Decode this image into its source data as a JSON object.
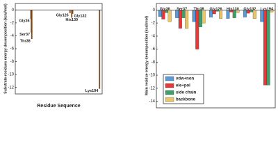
{
  "chart_data": [
    {
      "type": "bar",
      "y_label": "Substrate-residues energy decomposition (kcal/mol)",
      "x_label": "Residue Sequence",
      "categories": [
        "Gly36",
        "Ser37",
        "Thr38",
        "Gly126",
        "His130",
        "Gly132",
        "Lys194"
      ],
      "x": [
        36,
        37,
        38,
        126,
        130,
        132,
        194
      ],
      "values": [
        -1.4,
        -3.5,
        -4.5,
        -0.5,
        -1.2,
        -0.6,
        -12.2
      ],
      "color": "#7a4a1f",
      "xlim": [
        0,
        200
      ],
      "ylim": [
        -13,
        1
      ],
      "yticks": [
        0,
        -2,
        -4,
        -6,
        -8,
        -10,
        -12
      ]
    },
    {
      "type": "bar",
      "y_label": "Main residue energy decomposition (kcal/mol)",
      "categories": [
        "Gly36",
        "Ser37",
        "Thr38",
        "Gly126",
        "His130",
        "Gly132",
        "Lys194"
      ],
      "series": [
        {
          "name": "vdw+non",
          "color": "#5b9bd5",
          "values": [
            -1.0,
            -1.2,
            -1.8,
            -1.1,
            -1.3,
            -1.1,
            -1.8
          ]
        },
        {
          "name": "ele+pol",
          "color": "#e03a3a",
          "values": [
            -1.4,
            -2.8,
            -6.0,
            -0.6,
            -0.3,
            -0.5,
            -11.5
          ]
        },
        {
          "name": "side chain",
          "color": "#3f9e6a",
          "values": [
            -0.4,
            -1.2,
            -2.6,
            -0.2,
            -1.2,
            -0.3,
            -11.5
          ]
        },
        {
          "name": "backbone",
          "color": "#e8c46a",
          "values": [
            -1.8,
            -2.8,
            -2.0,
            -1.3,
            -0.4,
            -1.3,
            -0.3
          ]
        }
      ],
      "ylim": [
        -15,
        1
      ],
      "yticks": [
        0,
        -2,
        -4,
        -6,
        -8,
        -10,
        -12,
        -14
      ],
      "legend": "lower center"
    }
  ]
}
